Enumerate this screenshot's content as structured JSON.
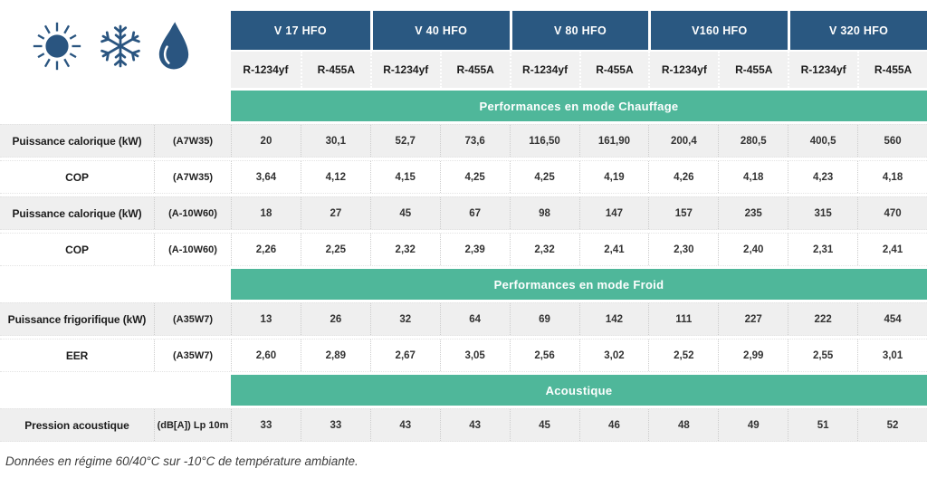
{
  "colors": {
    "header_blue": "#2A5881",
    "band_green": "#4FB79A",
    "icon_blue": "#2A5580",
    "stripe_gray": "#EFEFEF"
  },
  "icons": [
    {
      "name": "sun-icon"
    },
    {
      "name": "snowflake-icon"
    },
    {
      "name": "droplet-icon"
    }
  ],
  "models": [
    "V 17 HFO",
    "V 40 HFO",
    "V 80 HFO",
    "V160 HFO",
    "V 320 HFO"
  ],
  "refrigerant_columns": [
    "R-1234yf",
    "R-455A",
    "R-1234yf",
    "R-455A",
    "R-1234yf",
    "R-455A",
    "R-1234yf",
    "R-455A",
    "R-1234yf",
    "R-455A"
  ],
  "sections": [
    {
      "title": "Performances en mode Chauffage",
      "rows": [
        {
          "label": "Puissance calorique (kW)",
          "condition": "(A7W35)",
          "values": [
            "20",
            "30,1",
            "52,7",
            "73,6",
            "116,50",
            "161,90",
            "200,4",
            "280,5",
            "400,5",
            "560"
          ]
        },
        {
          "label": "COP",
          "condition": "(A7W35)",
          "values": [
            "3,64",
            "4,12",
            "4,15",
            "4,25",
            "4,25",
            "4,19",
            "4,26",
            "4,18",
            "4,23",
            "4,18"
          ]
        },
        {
          "label": "Puissance calorique (kW)",
          "condition": "(A-10W60)",
          "values": [
            "18",
            "27",
            "45",
            "67",
            "98",
            "147",
            "157",
            "235",
            "315",
            "470"
          ]
        },
        {
          "label": "COP",
          "condition": "(A-10W60)",
          "values": [
            "2,26",
            "2,25",
            "2,32",
            "2,39",
            "2,32",
            "2,41",
            "2,30",
            "2,40",
            "2,31",
            "2,41"
          ]
        }
      ]
    },
    {
      "title": "Performances en mode Froid",
      "rows": [
        {
          "label": "Puissance frigorifique (kW)",
          "condition": "(A35W7)",
          "values": [
            "13",
            "26",
            "32",
            "64",
            "69",
            "142",
            "111",
            "227",
            "222",
            "454"
          ]
        },
        {
          "label": "EER",
          "condition": "(A35W7)",
          "values": [
            "2,60",
            "2,89",
            "2,67",
            "3,05",
            "2,56",
            "3,02",
            "2,52",
            "2,99",
            "2,55",
            "3,01"
          ]
        }
      ]
    },
    {
      "title": "Acoustique",
      "rows": [
        {
          "label": "Pression acoustique",
          "condition": "(dB[A]) Lp 10m",
          "values": [
            "33",
            "33",
            "43",
            "43",
            "45",
            "46",
            "48",
            "49",
            "51",
            "52"
          ]
        }
      ]
    }
  ],
  "footnote": "Données en régime 60/40°C sur -10°C de température ambiante."
}
